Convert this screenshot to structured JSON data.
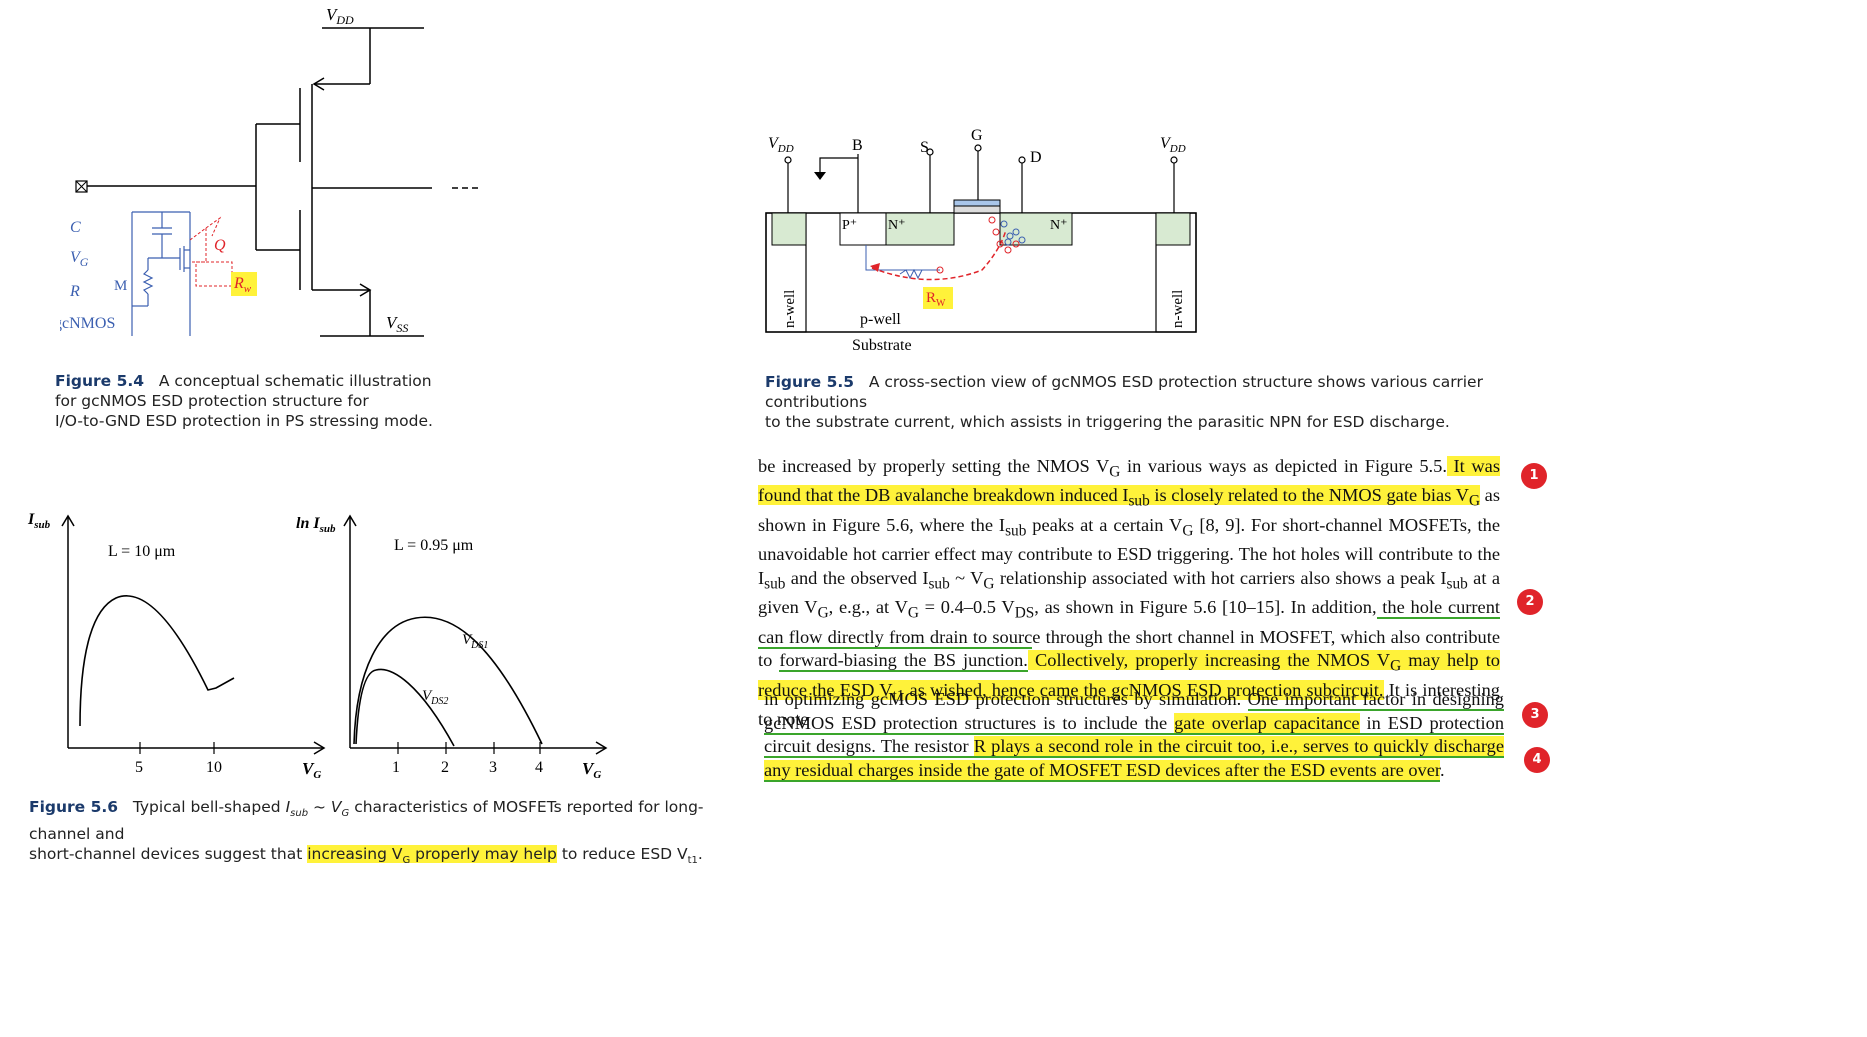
{
  "fig54": {
    "vdd_label": "V",
    "vdd_sub": "DD",
    "vss_label": "V",
    "vss_sub": "SS",
    "c_label": "C",
    "vg_label": "V",
    "vg_sub": "G",
    "r_label": "R",
    "m_label": "M",
    "q_label": "Q",
    "rw_label": "R",
    "rw_sub": "w",
    "gcnmos_label": "gcNMOS",
    "caption_num": "Figure 5.4",
    "caption_line1": "A conceptual schematic illustration",
    "caption_line2": "for gcNMOS ESD protection structure for",
    "caption_line3": "I/O-to-GND ESD protection in PS stressing mode."
  },
  "fig55": {
    "vdd_left": "V",
    "vdd_left_sub": "DD",
    "b_label": "B",
    "s_label": "S",
    "g_label": "G",
    "d_label": "D",
    "vdd_right": "V",
    "vdd_right_sub": "DD",
    "pplus": "P⁺",
    "nplus_s": "N⁺",
    "nplus_d": "N⁺",
    "nwell_left": "n-well",
    "nwell_right": "n-well",
    "pwell": "p-well",
    "rw_label": "R",
    "rw_sub": "W",
    "substrate": "Substrate",
    "caption_num": "Figure 5.5",
    "caption_line1": "A cross-section view of gcNMOS ESD protection structure shows various carrier contributions",
    "caption_line2": "to the substrate current, which assists in triggering the parasitic NPN for ESD discharge."
  },
  "fig56": {
    "left": {
      "ylabel": "I",
      "ylabel_sub": "sub",
      "annotation": "L = 10 μm",
      "xlabel": "V",
      "xlabel_sub": "G",
      "tick_labels": [
        "5",
        "10"
      ]
    },
    "right": {
      "ylabel": "ln I",
      "ylabel_sub": "sub",
      "annotation": "L = 0.95 μm",
      "xlabel": "V",
      "xlabel_sub": "G",
      "tick_labels": [
        "1",
        "2",
        "3",
        "4"
      ],
      "series_top": "V",
      "series_top_sub": "DS1",
      "series_bottom": "V",
      "series_bottom_sub": "DS2"
    },
    "caption_num": "Figure 5.6",
    "caption_line1a": "Typical bell-shaped ",
    "caption_line1b": " characteristics of MOSFETs reported for long-channel and",
    "caption_line2a": "short-channel devices suggest that ",
    "caption_line2_hl": "increasing V",
    "caption_line2_hl_sub": "G",
    "caption_line2_hl2": " properly may help",
    "caption_line2b": " to reduce ESD V",
    "caption_line2_sub": "t1",
    "caption_line2_end": "."
  },
  "text": {
    "p1": [
      "be increased by properly setting the NMOS V",
      "G",
      " in various ways as depicted in Figure 5.5.",
      " It was found that the DB avalanche breakdown induced I",
      "sub",
      " is closely related to the NMOS gate bias V",
      "G",
      " as shown in Figure 5.6, where the I",
      "sub",
      " peaks at a certain V",
      "G",
      " [8, 9]. For short-channel MOSFETs, the unavoidable hot carrier effect may contribute to ESD triggering. The hot holes will contribute to the I",
      "sub",
      " and the observed I",
      "sub",
      " ~ V",
      "G",
      " relationship associated with hot carriers also shows a peak I",
      "sub",
      " at a given V",
      "G",
      ", e.g., at V",
      "G",
      " = 0.4–0.5 V",
      "DS",
      ", as shown in Figure 5.6 [10–15]. In addition,",
      " the hole current can flow directly from drain to sourc",
      "e through the short channel in MOSFET, which also contribute to ",
      "forward-biasing the BS junction.",
      " Collectively, properly increasing the NMOS V",
      "G",
      " may help to reduce the ESD V",
      "t1",
      " as wished, hence came the gcNMOS ESD protection subcircuit.",
      " It is interesting to note"
    ],
    "p2": [
      "in optimizing gcMOS ESD protection structures by simulation. ",
      "One important factor in designing gcNMOS ESD protection structures is to include the ",
      "gate overlap capacitance",
      " in ESD protection circuit designs. The resistor ",
      "R plays a second role in the circuit too, i.e., serves to quickly discharge any residual charges inside the gate of MOSFET ESD devices after the ESD events are over",
      "."
    ]
  },
  "badges": [
    "1",
    "2",
    "3",
    "4"
  ],
  "colors": {
    "highlight": "#fff23a",
    "underline": "#3aa52b",
    "badge": "#e0242a",
    "caption_num": "#1b3a6b",
    "well_fill": "#d8ead2",
    "annotation_blue": "#3b5fb0",
    "annotation_red": "#e0242a"
  }
}
